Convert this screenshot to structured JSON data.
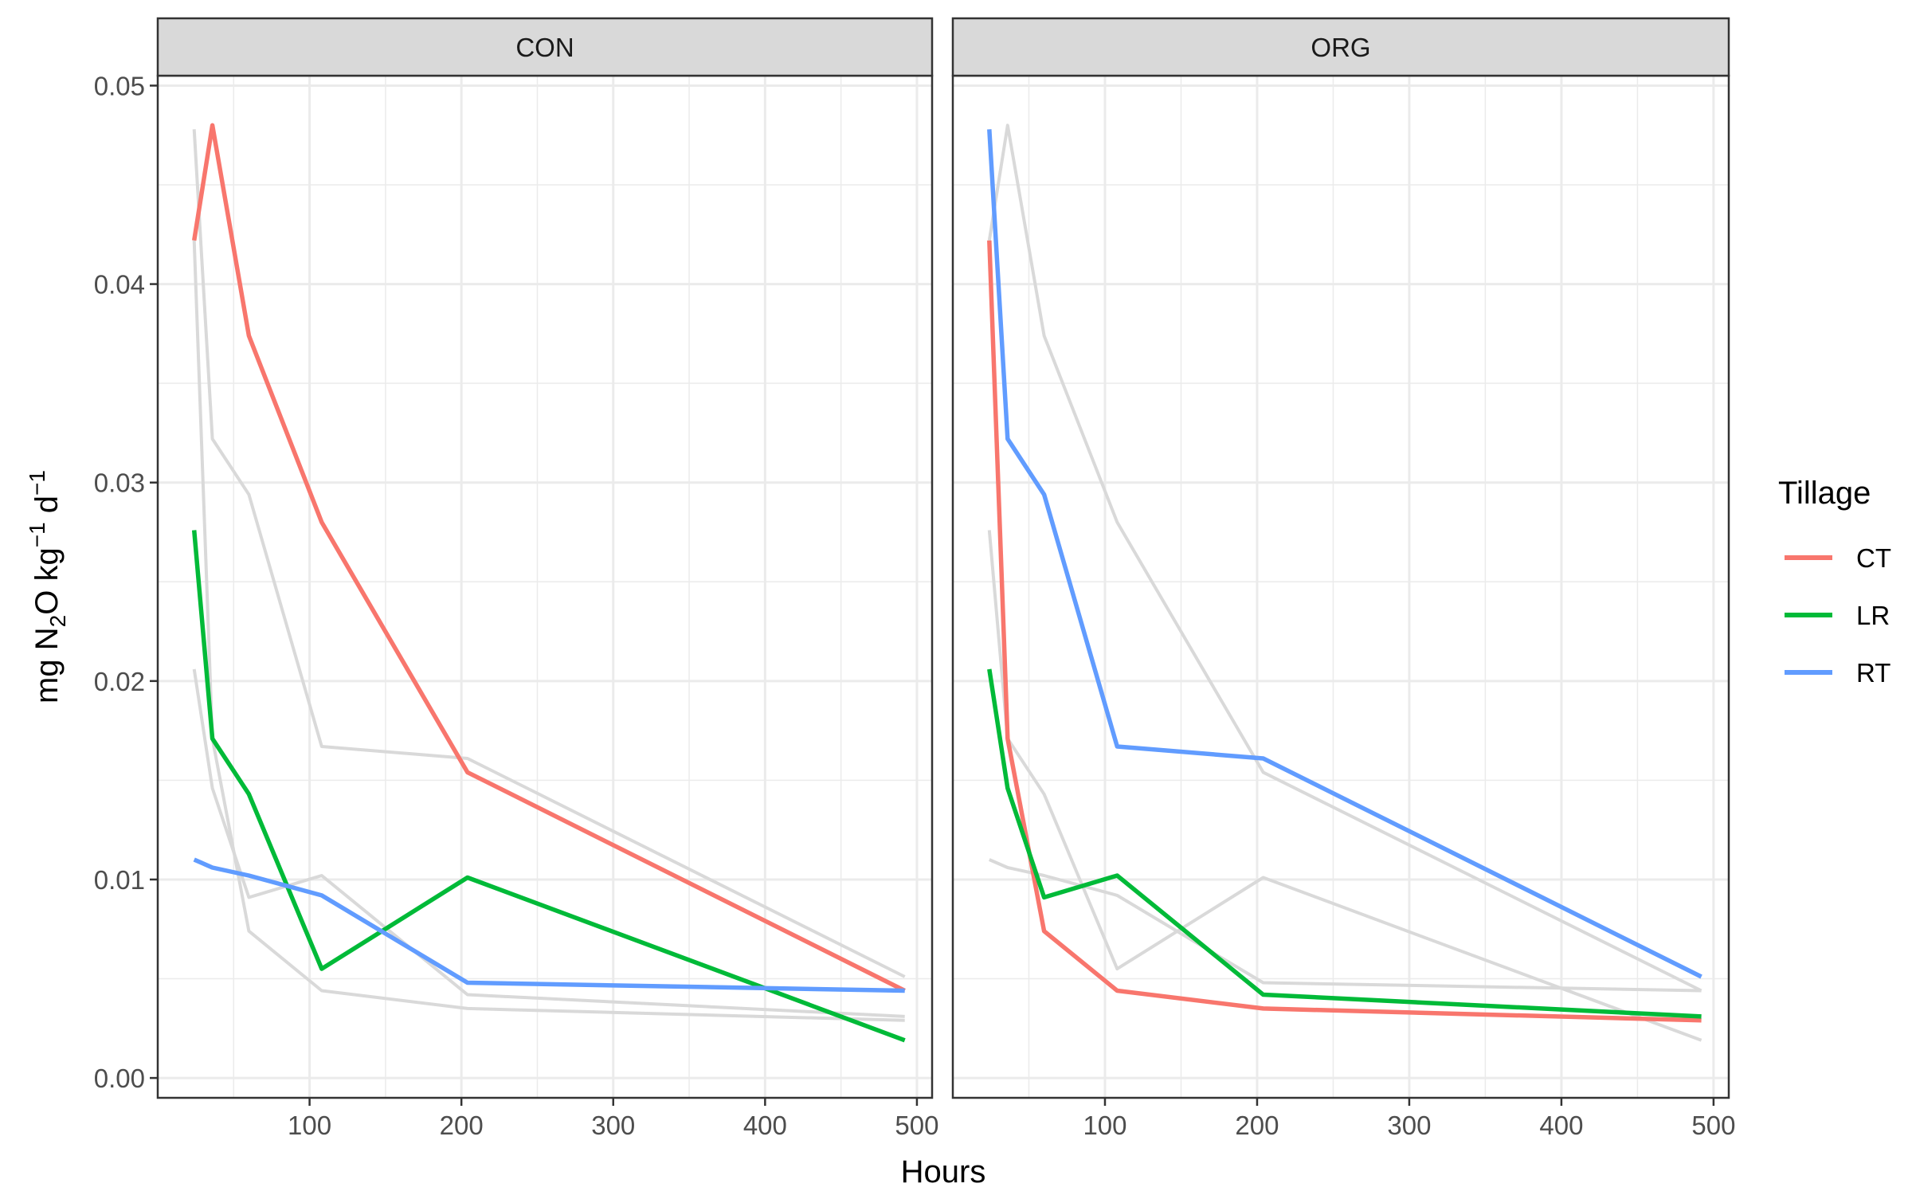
{
  "chart_data": {
    "type": "line",
    "facet_layout": "1x2",
    "shared_y_axis": true,
    "grid": true,
    "xlabel": "Hours",
    "ylabel": {
      "parts": [
        "mg N",
        "2",
        "O kg",
        "−1",
        " d",
        "−1"
      ]
    },
    "xlim": [
      0,
      510
    ],
    "ylim": [
      -0.001,
      0.0505
    ],
    "x_ticks": [
      100,
      200,
      300,
      400,
      500
    ],
    "y_ticks": [
      0,
      0.01,
      0.02,
      0.03,
      0.04,
      0.05
    ],
    "y_tick_labels": [
      "0.00",
      "0.01",
      "0.02",
      "0.03",
      "0.04",
      "0.05"
    ],
    "background_series_color": "#d9d9d9",
    "legend": {
      "title": "Tillage",
      "placement": "right",
      "items": [
        {
          "name": "CT",
          "color": "#F8766D"
        },
        {
          "name": "LR",
          "color": "#00BA38"
        },
        {
          "name": "RT",
          "color": "#619CFF"
        }
      ]
    },
    "panels": [
      {
        "title": "CON",
        "series": [
          {
            "name": "CT",
            "color": "#F8766D",
            "x": [
              24,
              36,
              60,
              108,
              204,
              492
            ],
            "y": [
              0.0422,
              0.048,
              0.0374,
              0.028,
              0.0154,
              0.0044
            ]
          },
          {
            "name": "LR",
            "color": "#00BA38",
            "x": [
              24,
              36,
              60,
              108,
              204,
              492
            ],
            "y": [
              0.0276,
              0.0171,
              0.0143,
              0.0055,
              0.0101,
              0.0019
            ]
          },
          {
            "name": "RT",
            "color": "#619CFF",
            "x": [
              24,
              36,
              60,
              108,
              204,
              492
            ],
            "y": [
              0.011,
              0.0106,
              0.0102,
              0.0092,
              0.0048,
              0.0044
            ]
          }
        ]
      },
      {
        "title": "ORG",
        "series": [
          {
            "name": "CT",
            "color": "#F8766D",
            "x": [
              24,
              36,
              60,
              108,
              204,
              492
            ],
            "y": [
              0.0422,
              0.0171,
              0.0074,
              0.0044,
              0.0035,
              0.0029
            ]
          },
          {
            "name": "LR",
            "color": "#00BA38",
            "x": [
              24,
              36,
              60,
              108,
              204,
              492
            ],
            "y": [
              0.0206,
              0.0146,
              0.0091,
              0.0102,
              0.0042,
              0.0031
            ]
          },
          {
            "name": "RT",
            "color": "#619CFF",
            "x": [
              24,
              36,
              60,
              108,
              204,
              492
            ],
            "y": [
              0.0478,
              0.0322,
              0.0294,
              0.0167,
              0.0161,
              0.0051
            ]
          }
        ]
      }
    ]
  }
}
